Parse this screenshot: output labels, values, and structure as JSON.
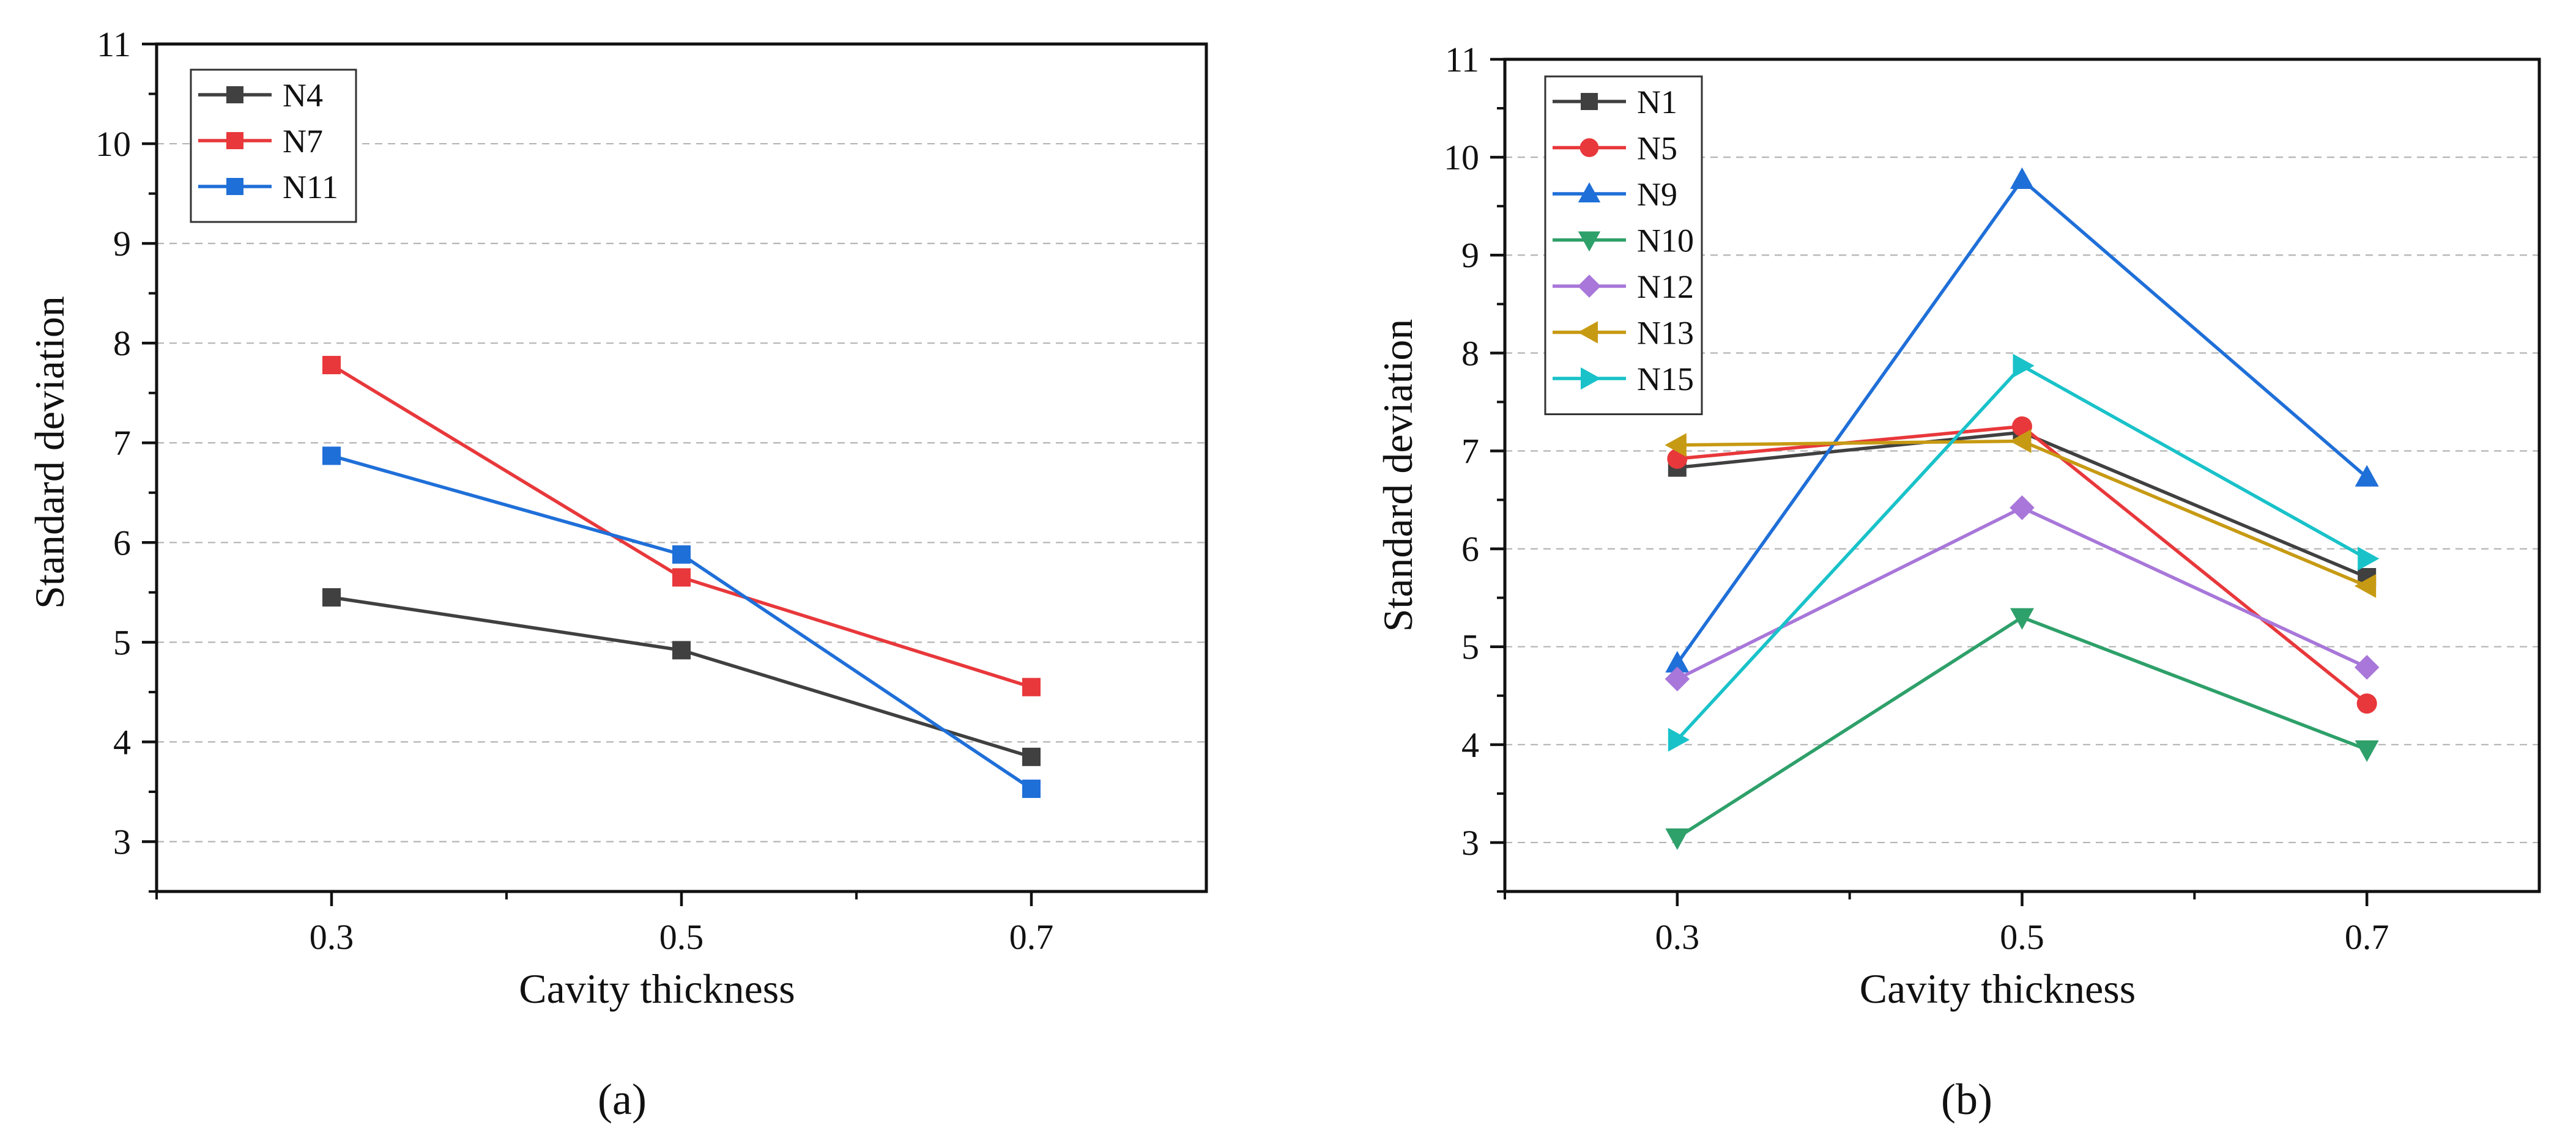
{
  "chart_data": [
    {
      "panel_label": "(a)",
      "type": "line",
      "xlabel": "Cavity thickness",
      "ylabel": "Standard deviation",
      "x": [
        0.3,
        0.5,
        0.7
      ],
      "x_ticks": [
        "0.3",
        "0.5",
        "0.7"
      ],
      "xlim": [
        0.2,
        0.8
      ],
      "ylim": [
        2.5,
        11
      ],
      "y_ticks": [
        3,
        4,
        5,
        6,
        7,
        8,
        9,
        10,
        11
      ],
      "grid": "horizontal dashed",
      "legend_position": "top-left",
      "series": [
        {
          "name": "N4",
          "values": [
            5.45,
            4.92,
            3.85
          ],
          "color": "#404040",
          "marker": "square"
        },
        {
          "name": "N7",
          "values": [
            7.78,
            5.65,
            4.55
          ],
          "color": "#e8383b",
          "marker": "square"
        },
        {
          "name": "N11",
          "values": [
            6.87,
            5.88,
            3.53
          ],
          "color": "#1f6fd8",
          "marker": "square"
        }
      ]
    },
    {
      "panel_label": "(b)",
      "type": "line",
      "xlabel": "Cavity thickness",
      "ylabel": "Standard deviation",
      "x": [
        0.3,
        0.5,
        0.7
      ],
      "x_ticks": [
        "0.3",
        "0.5",
        "0.7"
      ],
      "xlim": [
        0.2,
        0.8
      ],
      "ylim": [
        2.5,
        11
      ],
      "y_ticks": [
        3,
        4,
        5,
        6,
        7,
        8,
        9,
        10,
        11
      ],
      "grid": "horizontal dashed",
      "legend_position": "top-left",
      "series": [
        {
          "name": "N1",
          "values": [
            6.83,
            7.19,
            5.71
          ],
          "color": "#404040",
          "marker": "square"
        },
        {
          "name": "N5",
          "values": [
            6.92,
            7.25,
            4.42
          ],
          "color": "#e8383b",
          "marker": "circle"
        },
        {
          "name": "N9",
          "values": [
            4.83,
            9.77,
            6.73
          ],
          "color": "#1f6fd8",
          "marker": "triangle-up"
        },
        {
          "name": "N10",
          "values": [
            3.05,
            5.3,
            3.95
          ],
          "color": "#2ea06a",
          "marker": "triangle-down"
        },
        {
          "name": "N12",
          "values": [
            4.67,
            6.42,
            4.79
          ],
          "color": "#a877d9",
          "marker": "diamond"
        },
        {
          "name": "N13",
          "values": [
            7.06,
            7.1,
            5.62
          ],
          "color": "#c79a13",
          "marker": "triangle-left"
        },
        {
          "name": "N15",
          "values": [
            4.05,
            7.87,
            5.9
          ],
          "color": "#19c2c9",
          "marker": "triangle-right"
        }
      ]
    }
  ]
}
